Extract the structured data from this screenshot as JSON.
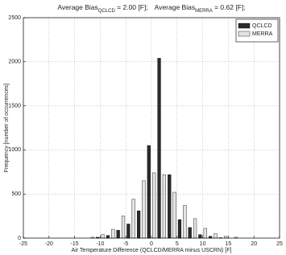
{
  "chart_data": {
    "type": "bar",
    "title": [
      "Average Bias",
      "QCLCD",
      " = 2.00 [F];",
      "Average Bias",
      "MERRA",
      " = 0.62 [F];"
    ],
    "xlabel": "Air Temperature Difference (QCLCD/MERRA minus USCRN) [F]",
    "ylabel": "Frequency [number of occurrences]",
    "x": [
      -12,
      -10,
      -8,
      -6,
      -4,
      -2,
      0,
      2,
      4,
      6,
      8,
      10,
      12,
      14,
      16
    ],
    "series": [
      {
        "name": "QCLCD",
        "color": "#2b2b2b",
        "values": [
          0,
          10,
          30,
          90,
          160,
          310,
          1050,
          2040,
          720,
          210,
          120,
          40,
          20,
          5,
          0
        ]
      },
      {
        "name": "MERRA",
        "color": "#e4e4e4",
        "values": [
          10,
          40,
          100,
          250,
          440,
          650,
          740,
          720,
          520,
          370,
          220,
          110,
          50,
          20,
          10
        ]
      }
    ],
    "xlim": [
      -25,
      25
    ],
    "xticks": [
      -25,
      -20,
      -15,
      -10,
      -5,
      0,
      5,
      10,
      15,
      20,
      25
    ],
    "ylim": [
      0,
      2500
    ],
    "yticks": [
      0,
      500,
      1000,
      1500,
      2000,
      2500
    ],
    "grid": true,
    "legend": "upper right"
  }
}
